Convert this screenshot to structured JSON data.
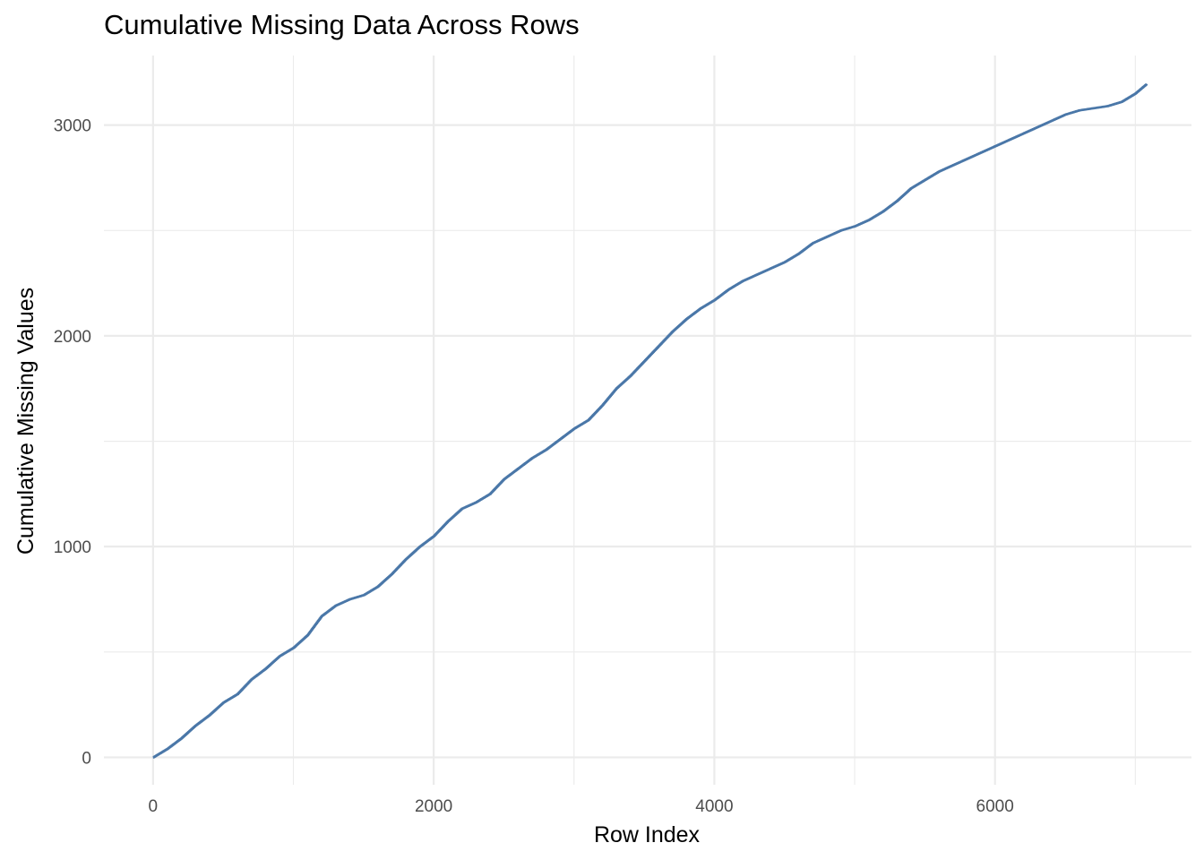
{
  "chart_data": {
    "type": "line",
    "title": "Cumulative Missing Data Across Rows",
    "xlabel": "Row Index",
    "ylabel": "Cumulative Missing Values",
    "xlim": [
      -350,
      7400
    ],
    "ylim": [
      -130,
      3330
    ],
    "x_ticks": [
      0,
      2000,
      4000,
      6000
    ],
    "x_minor_ticks": [
      1000,
      3000,
      5000,
      7000
    ],
    "y_ticks": [
      0,
      1000,
      2000,
      3000
    ],
    "y_minor_ticks": [
      500,
      1500,
      2500
    ],
    "grid": true,
    "legend": "none",
    "line_color": "#4a77a8",
    "series": [
      {
        "x": [
          0,
          100,
          200,
          300,
          400,
          500,
          600,
          700,
          800,
          900,
          1000,
          1100,
          1200,
          1300,
          1400,
          1500,
          1600,
          1700,
          1800,
          1900,
          2000,
          2100,
          2200,
          2300,
          2400,
          2500,
          2600,
          2700,
          2800,
          2900,
          3000,
          3100,
          3200,
          3300,
          3400,
          3500,
          3600,
          3700,
          3800,
          3900,
          4000,
          4100,
          4200,
          4300,
          4400,
          4500,
          4600,
          4700,
          4800,
          4900,
          5000,
          5100,
          5200,
          5300,
          5400,
          5500,
          5600,
          5700,
          5800,
          5900,
          6000,
          6100,
          6200,
          6300,
          6400,
          6500,
          6600,
          6700,
          6800,
          6900,
          7000,
          7080
        ],
        "values": [
          0,
          40,
          90,
          150,
          200,
          260,
          300,
          370,
          420,
          480,
          520,
          580,
          670,
          720,
          750,
          770,
          810,
          870,
          940,
          1000,
          1050,
          1120,
          1180,
          1210,
          1250,
          1320,
          1370,
          1420,
          1460,
          1510,
          1560,
          1600,
          1670,
          1750,
          1810,
          1880,
          1950,
          2020,
          2080,
          2130,
          2170,
          2220,
          2260,
          2290,
          2320,
          2350,
          2390,
          2440,
          2470,
          2500,
          2520,
          2550,
          2590,
          2640,
          2700,
          2740,
          2780,
          2810,
          2840,
          2870,
          2900,
          2930,
          2960,
          2990,
          3020,
          3050,
          3070,
          3080,
          3090,
          3110,
          3150,
          3195
        ]
      }
    ]
  }
}
